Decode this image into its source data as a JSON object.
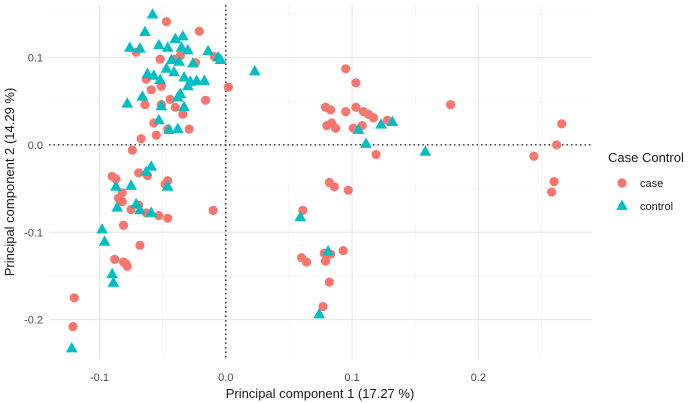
{
  "chart_data": {
    "type": "scatter",
    "xlabel": "Principal component 1 (17.27 %)",
    "ylabel": "Principal component 2 (14.29 %)",
    "xlim": [
      -0.14,
      0.29
    ],
    "ylim": [
      -0.245,
      0.16
    ],
    "x_ticks": [
      -0.1,
      0.0,
      0.1,
      0.2
    ],
    "x_tick_labels": [
      "-0.1",
      "0.0",
      "0.1",
      "0.2"
    ],
    "y_ticks": [
      -0.2,
      -0.1,
      0.0,
      0.1
    ],
    "y_tick_labels": [
      "-0.2",
      "-0.1",
      "0.0",
      "0.1"
    ],
    "grid": true,
    "reference_lines": {
      "x": 0.0,
      "y": 0.0,
      "style": "dotted"
    },
    "legend": {
      "title": "Case Control",
      "position": "right"
    },
    "series": [
      {
        "name": "case",
        "color": "#F8766D",
        "marker": "circle",
        "points": [
          [
            -0.047,
            0.141
          ],
          [
            -0.021,
            0.13
          ],
          [
            -0.071,
            0.106
          ],
          [
            -0.036,
            0.102
          ],
          [
            -0.052,
            0.098
          ],
          [
            -0.04,
            0.098
          ],
          [
            -0.024,
            0.094
          ],
          [
            -0.009,
            0.101
          ],
          [
            -0.063,
            0.075
          ],
          [
            -0.051,
            0.067
          ],
          [
            -0.059,
            0.063
          ],
          [
            -0.044,
            0.052
          ],
          [
            -0.016,
            0.051
          ],
          [
            -0.064,
            0.046
          ],
          [
            -0.051,
            0.046
          ],
          [
            -0.04,
            0.043
          ],
          [
            0.002,
            0.066
          ],
          [
            -0.034,
            0.035
          ],
          [
            -0.057,
            0.025
          ],
          [
            -0.046,
            0.018
          ],
          [
            -0.029,
            0.018
          ],
          [
            -0.055,
            0.011
          ],
          [
            -0.067,
            0.007
          ],
          [
            -0.074,
            -0.006
          ],
          [
            -0.069,
            -0.032
          ],
          [
            -0.062,
            -0.035
          ],
          [
            -0.09,
            -0.036
          ],
          [
            -0.087,
            -0.039
          ],
          [
            -0.046,
            -0.041
          ],
          [
            -0.048,
            -0.045
          ],
          [
            -0.082,
            -0.055
          ],
          [
            -0.085,
            -0.061
          ],
          [
            -0.082,
            -0.065
          ],
          [
            -0.069,
            -0.069
          ],
          [
            -0.075,
            -0.074
          ],
          [
            -0.063,
            -0.078
          ],
          [
            -0.053,
            -0.081
          ],
          [
            -0.046,
            -0.084
          ],
          [
            -0.01,
            -0.075
          ],
          [
            -0.081,
            -0.092
          ],
          [
            -0.068,
            -0.115
          ],
          [
            -0.088,
            -0.131
          ],
          [
            -0.081,
            -0.134
          ],
          [
            -0.079,
            -0.136
          ],
          [
            -0.078,
            -0.139
          ],
          [
            -0.12,
            -0.175
          ],
          [
            -0.121,
            -0.208
          ],
          [
            0.095,
            0.087
          ],
          [
            0.103,
            0.071
          ],
          [
            0.079,
            0.043
          ],
          [
            0.083,
            0.04
          ],
          [
            0.103,
            0.043
          ],
          [
            0.109,
            0.038
          ],
          [
            0.113,
            0.035
          ],
          [
            0.117,
            0.031
          ],
          [
            0.128,
            0.028
          ],
          [
            0.178,
            0.046
          ],
          [
            0.095,
            0.038
          ],
          [
            0.108,
            0.022
          ],
          [
            0.084,
            0.025
          ],
          [
            0.08,
            0.022
          ],
          [
            0.087,
            0.019
          ],
          [
            0.101,
            0.019
          ],
          [
            0.119,
            -0.011
          ],
          [
            0.082,
            -0.043
          ],
          [
            0.086,
            -0.048
          ],
          [
            0.097,
            -0.052
          ],
          [
            0.061,
            -0.075
          ],
          [
            0.078,
            -0.124
          ],
          [
            0.083,
            -0.125
          ],
          [
            0.093,
            -0.121
          ],
          [
            0.06,
            -0.129
          ],
          [
            0.064,
            -0.134
          ],
          [
            0.079,
            -0.133
          ],
          [
            0.082,
            -0.157
          ],
          [
            0.077,
            -0.185
          ],
          [
            0.266,
            0.024
          ],
          [
            0.262,
            0.0
          ],
          [
            0.244,
            -0.013
          ],
          [
            0.26,
            -0.042
          ],
          [
            0.258,
            -0.054
          ]
        ]
      },
      {
        "name": "control",
        "color": "#00BFC4",
        "marker": "triangle",
        "points": [
          [
            -0.058,
            0.149
          ],
          [
            -0.064,
            0.129
          ],
          [
            -0.034,
            0.124
          ],
          [
            -0.04,
            0.121
          ],
          [
            -0.076,
            0.111
          ],
          [
            -0.068,
            0.11
          ],
          [
            -0.053,
            0.114
          ],
          [
            -0.046,
            0.111
          ],
          [
            -0.035,
            0.111
          ],
          [
            -0.03,
            0.108
          ],
          [
            -0.014,
            0.107
          ],
          [
            -0.043,
            0.097
          ],
          [
            -0.037,
            0.095
          ],
          [
            -0.026,
            0.093
          ],
          [
            -0.006,
            0.1
          ],
          [
            -0.004,
            0.097
          ],
          [
            -0.047,
            0.087
          ],
          [
            -0.041,
            0.083
          ],
          [
            -0.062,
            0.081
          ],
          [
            -0.057,
            0.079
          ],
          [
            -0.052,
            0.074
          ],
          [
            -0.033,
            0.077
          ],
          [
            -0.028,
            0.072
          ],
          [
            -0.023,
            0.073
          ],
          [
            -0.017,
            0.073
          ],
          [
            -0.03,
            0.067
          ],
          [
            -0.036,
            0.058
          ],
          [
            -0.038,
            0.054
          ],
          [
            -0.066,
            0.055
          ],
          [
            -0.078,
            0.047
          ],
          [
            -0.051,
            0.044
          ],
          [
            -0.033,
            0.043
          ],
          [
            -0.053,
            0.028
          ],
          [
            -0.045,
            0.017
          ],
          [
            -0.038,
            0.018
          ],
          [
            -0.059,
            -0.025
          ],
          [
            -0.063,
            -0.031
          ],
          [
            -0.046,
            -0.048
          ],
          [
            -0.087,
            -0.048
          ],
          [
            -0.075,
            -0.047
          ],
          [
            -0.071,
            -0.068
          ],
          [
            -0.068,
            -0.075
          ],
          [
            -0.086,
            -0.072
          ],
          [
            -0.059,
            -0.078
          ],
          [
            -0.098,
            -0.097
          ],
          [
            -0.096,
            -0.111
          ],
          [
            -0.09,
            -0.148
          ],
          [
            -0.089,
            -0.158
          ],
          [
            -0.122,
            -0.233
          ],
          [
            0.023,
            0.084
          ],
          [
            0.105,
            0.017
          ],
          [
            0.123,
            0.023
          ],
          [
            0.132,
            0.026
          ],
          [
            0.111,
            0.001
          ],
          [
            0.158,
            -0.008
          ],
          [
            0.059,
            -0.083
          ],
          [
            0.081,
            -0.122
          ],
          [
            0.074,
            -0.194
          ]
        ]
      }
    ]
  }
}
